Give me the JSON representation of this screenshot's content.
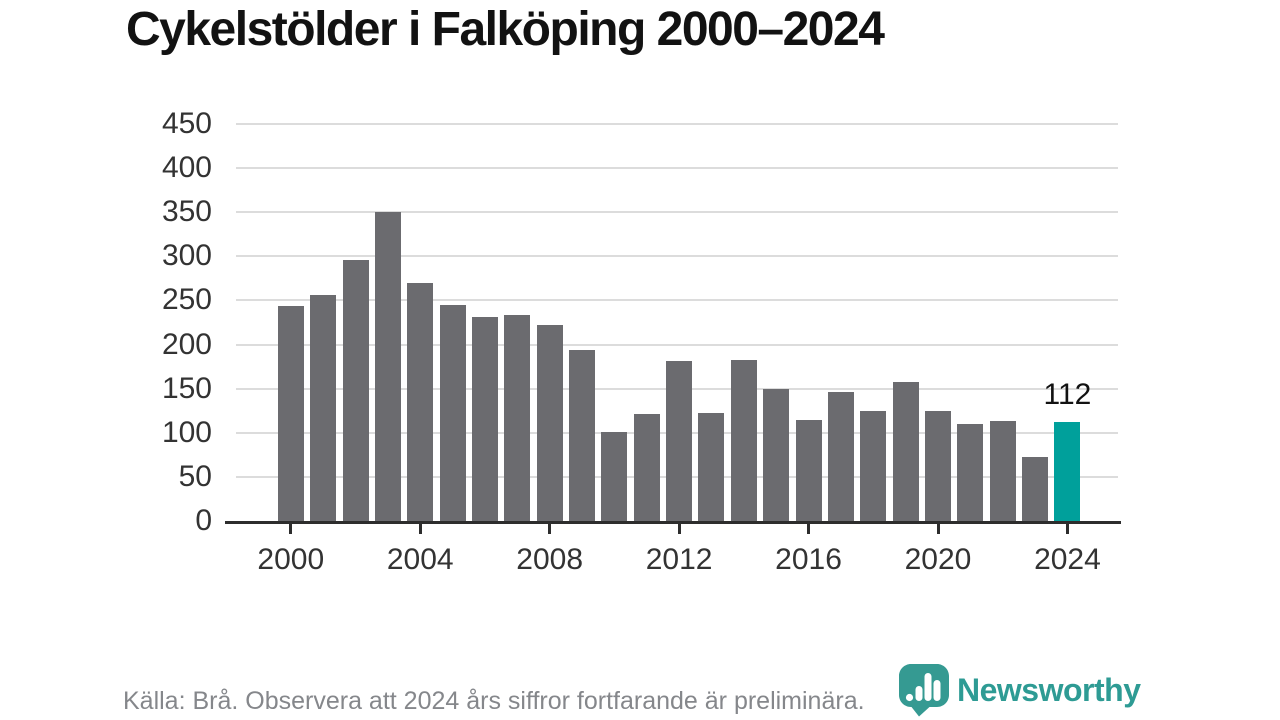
{
  "title": "Cykelstölder i Falköping 2000–2024",
  "chart_data": {
    "type": "bar",
    "title": "Cykelstölder i Falköping 2000–2024",
    "categories": [
      2000,
      2001,
      2002,
      2003,
      2004,
      2005,
      2006,
      2007,
      2008,
      2009,
      2010,
      2011,
      2012,
      2013,
      2014,
      2015,
      2016,
      2017,
      2018,
      2019,
      2020,
      2021,
      2022,
      2023,
      2024
    ],
    "values": [
      244,
      256,
      296,
      350,
      270,
      245,
      231,
      233,
      222,
      194,
      101,
      121,
      181,
      122,
      182,
      150,
      114,
      146,
      125,
      158,
      125,
      110,
      113,
      72,
      112
    ],
    "highlight": {
      "year": 2024,
      "value": 112,
      "label": "112"
    },
    "xlabel": "",
    "ylabel": "",
    "ylim": [
      0,
      450
    ],
    "y_ticks": [
      0,
      50,
      100,
      150,
      200,
      250,
      300,
      350,
      400,
      450
    ],
    "x_ticks": [
      2000,
      2004,
      2008,
      2012,
      2016,
      2020,
      2024
    ],
    "grid": true,
    "legend": "none",
    "bar_color": "#6b6b6f",
    "highlight_color": "#00a09b",
    "gridline_color": "#dcdcdc",
    "axis_color": "#2d2d2d"
  },
  "footer": {
    "source_text": "Källa: Brå. Observera att 2024 års siffror fortfarande är preliminära.",
    "brand_name": "Newsworthy",
    "brand_color": "#2e9b94"
  }
}
